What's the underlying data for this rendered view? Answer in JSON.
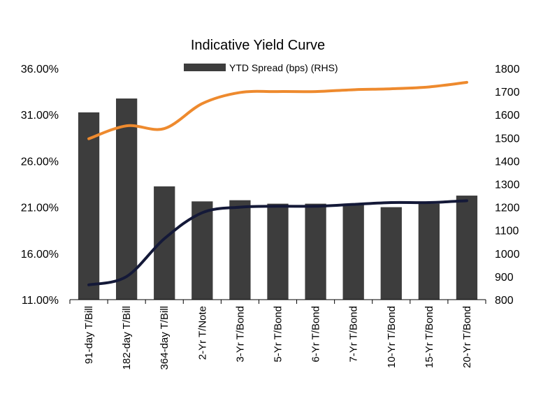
{
  "chart_data": {
    "type": "bar+line",
    "title": "Indicative Yield Curve",
    "legend": {
      "position": "top",
      "entries": [
        "YTD Spread (bps) (RHS)"
      ]
    },
    "categories": [
      "91-day T/Bill",
      "182-day T/Bill",
      "364-day T/Bill",
      "2-Yr T/Note",
      "3-Yr T/Bond",
      "5-Yr T/Bond",
      "6-Yr T/Bond",
      "7-Yr T/Bond",
      "10-Yr T/Bond",
      "15-Yr T/Bond",
      "20-Yr T/Bond"
    ],
    "left_axis": {
      "min": 11,
      "max": 36,
      "step": 5,
      "tick_labels": [
        "11.00%",
        "16.00%",
        "21.00%",
        "26.00%",
        "31.00%",
        "36.00%"
      ]
    },
    "right_axis": {
      "min": 800,
      "max": 1800,
      "step": 100,
      "tick_labels": [
        "800",
        "900",
        "1000",
        "1100",
        "1200",
        "1300",
        "1400",
        "1500",
        "1600",
        "1700",
        "1800"
      ]
    },
    "bar_series": {
      "name": "YTD Spread (bps) (RHS)",
      "axis": "right",
      "color": "#3d3d3d",
      "values": [
        1610,
        1670,
        1290,
        1225,
        1230,
        1215,
        1215,
        1210,
        1200,
        1215,
        1250
      ]
    },
    "line_series": [
      {
        "axis": "left",
        "color": "#ee8a2e",
        "values": [
          28.4,
          29.8,
          29.5,
          32.2,
          33.4,
          33.5,
          33.5,
          33.7,
          33.8,
          34.0,
          34.5
        ]
      },
      {
        "axis": "left",
        "color": "#141938",
        "values": [
          12.6,
          13.5,
          17.6,
          20.4,
          21.0,
          21.1,
          21.1,
          21.3,
          21.5,
          21.5,
          21.7
        ]
      }
    ],
    "grid": false
  }
}
